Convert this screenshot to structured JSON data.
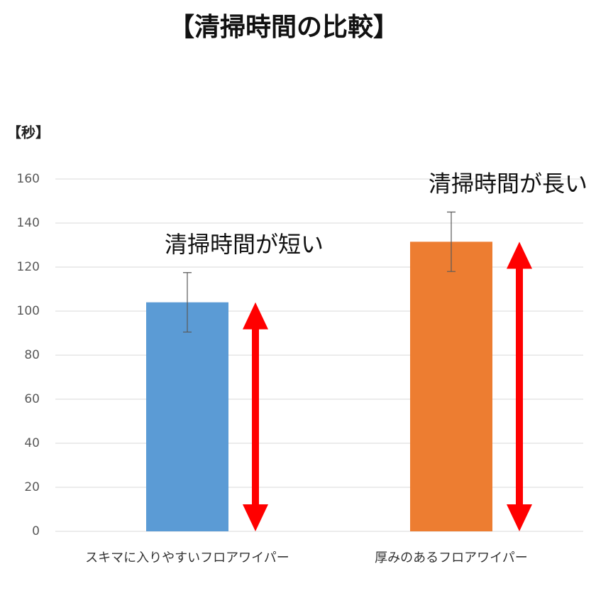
{
  "chart_data": {
    "type": "bar",
    "title": "【清掃時間の比較】",
    "y_label": "【秒】",
    "categories": [
      "スキマに入りやすいフロアワイパー",
      "厚みのあるフロアワイパー"
    ],
    "values": [
      104,
      131.5
    ],
    "errors": [
      13.5,
      13.5
    ],
    "colors": [
      "#5b9bd5",
      "#ed7d31"
    ],
    "annotations": [
      "清掃時間が短い",
      "清掃時間が長い"
    ],
    "ylim": [
      0,
      160
    ],
    "yticks": [
      0,
      20,
      40,
      60,
      80,
      100,
      120,
      140,
      160
    ],
    "grid": true
  }
}
